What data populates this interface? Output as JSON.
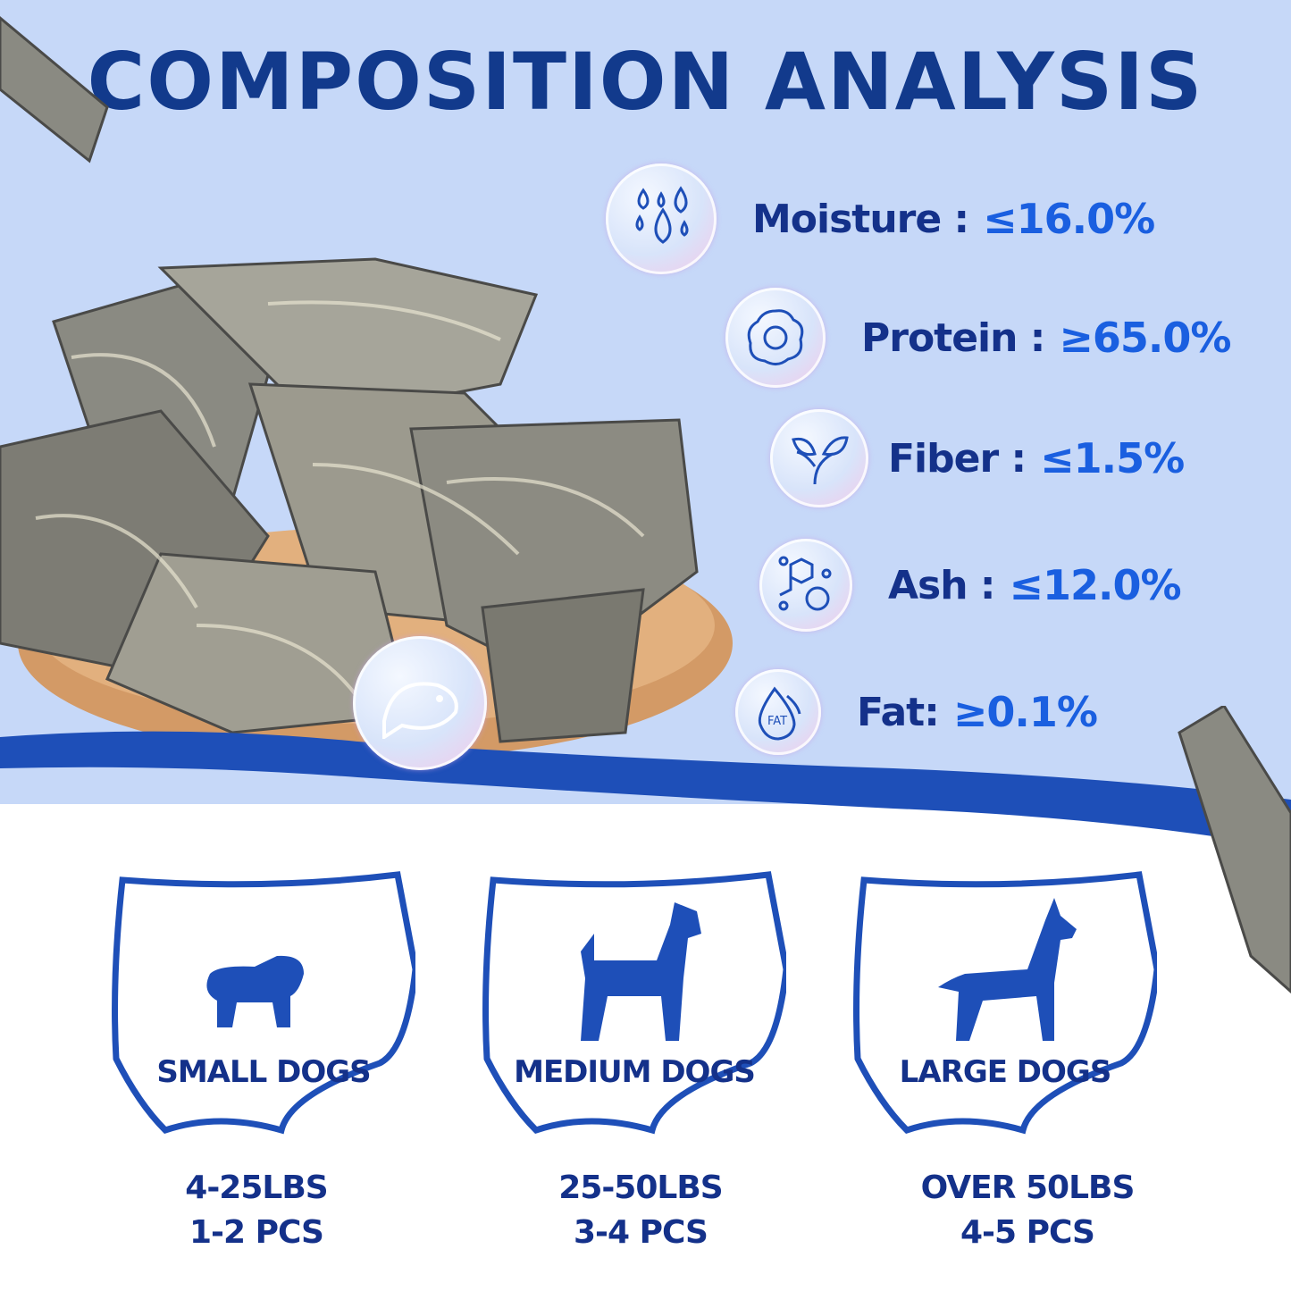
{
  "title": "COMPOSITION ANALYSIS",
  "nutrients": [
    {
      "label": "Moisture :",
      "value": "≤16.0%",
      "icon": "water-drops-icon"
    },
    {
      "label": "Protein :",
      "value": "≥65.0%",
      "icon": "fried-egg-icon"
    },
    {
      "label": "Fiber :",
      "value": "≤1.5%",
      "icon": "leaf-sprout-icon"
    },
    {
      "label": "Ash :",
      "value": "≤12.0%",
      "icon": "molecule-dna-icon"
    },
    {
      "label": "Fat:",
      "value": "≥0.1%",
      "icon": "fat-drop-icon",
      "icon_text": "FAT"
    }
  ],
  "dogs": [
    {
      "label": "SMALL DOGS",
      "weight": "4-25LBS",
      "pieces": "1-2 PCS"
    },
    {
      "label": "MEDIUM DOGS",
      "weight": "25-50LBS",
      "pieces": "3-4 PCS"
    },
    {
      "label": "LARGE DOGS",
      "weight": "OVER 50LBS",
      "pieces": "4-5 PCS"
    }
  ],
  "colors": {
    "background_top": "#c6d8f8",
    "wave": "#1e4fb8",
    "heading": "#123a8c",
    "value": "#1a5fe0"
  }
}
